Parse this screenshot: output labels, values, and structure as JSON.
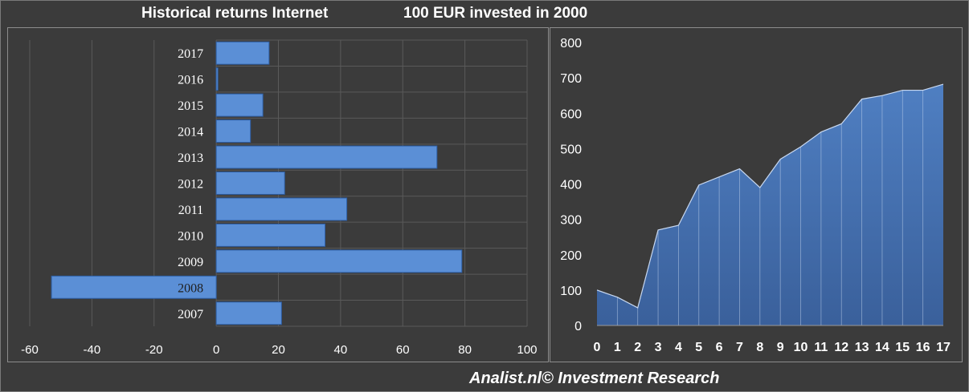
{
  "header": {
    "title_left": "Historical returns Internet",
    "title_right": "100 EUR invested in 2000"
  },
  "footer": {
    "credit": "Analist.nl© Investment Research"
  },
  "colors": {
    "background": "#3b3b3b",
    "bar_fill": "#5b8fd6",
    "area_fill": "#4a78b8",
    "area_line": "#c8d8f0",
    "grid": "#5a5a5a",
    "text": "#ffffff"
  },
  "chart_data": [
    {
      "type": "bar",
      "orientation": "horizontal",
      "categories": [
        "2017",
        "2016",
        "2015",
        "2014",
        "2013",
        "2012",
        "2011",
        "2010",
        "2009",
        "2008",
        "2007"
      ],
      "values": [
        17,
        0.5,
        15,
        11,
        71,
        22,
        42,
        35,
        79,
        -53,
        21
      ],
      "xlim": [
        -60,
        100
      ],
      "xticks": [
        -60,
        -40,
        -20,
        0,
        20,
        40,
        60,
        80,
        100
      ],
      "grid": true
    },
    {
      "type": "area",
      "x": [
        0,
        1,
        2,
        3,
        4,
        5,
        6,
        7,
        8,
        9,
        10,
        11,
        12,
        13,
        14,
        15,
        16,
        17
      ],
      "values": [
        100,
        80,
        50,
        270,
        283,
        397,
        420,
        443,
        390,
        470,
        505,
        547,
        570,
        640,
        650,
        665,
        665,
        682
      ],
      "ylim": [
        0,
        800
      ],
      "yticks": [
        0,
        100,
        200,
        300,
        400,
        500,
        600,
        700,
        800
      ],
      "grid": false
    }
  ]
}
